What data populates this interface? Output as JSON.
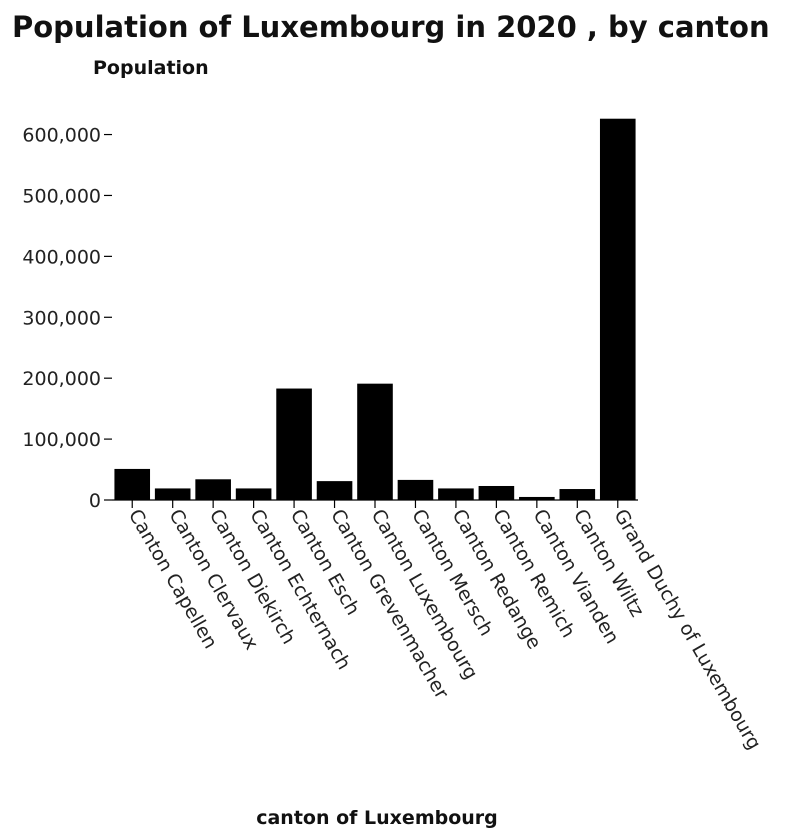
{
  "chart_data": {
    "type": "bar",
    "title": "Population of Luxembourg in 2020 , by canton",
    "ylabel": "Population",
    "xlabel": "canton of Luxembourg",
    "categories": [
      "Canton Capellen",
      "Canton Clervaux",
      "Canton Diekirch",
      "Canton Echternach",
      "Canton Esch",
      "Canton Grevenmacher",
      "Canton Luxembourg",
      "Canton Mersch",
      "Canton Redange",
      "Canton Remich",
      "Canton Vianden",
      "Canton Wiltz",
      "Grand Duchy of Luxembourg"
    ],
    "values": [
      51000,
      19000,
      34000,
      19000,
      183000,
      31000,
      191000,
      33000,
      19000,
      23000,
      5000,
      18000,
      626000
    ],
    "ylim": [
      0,
      660000
    ],
    "yticks": [
      0,
      100000,
      200000,
      300000,
      400000,
      500000,
      600000
    ],
    "ytick_labels": [
      "0",
      "100,000",
      "200,000",
      "300,000",
      "400,000",
      "500,000",
      "600,000"
    ],
    "grid": false,
    "colors": {
      "bar": "#000000"
    }
  }
}
